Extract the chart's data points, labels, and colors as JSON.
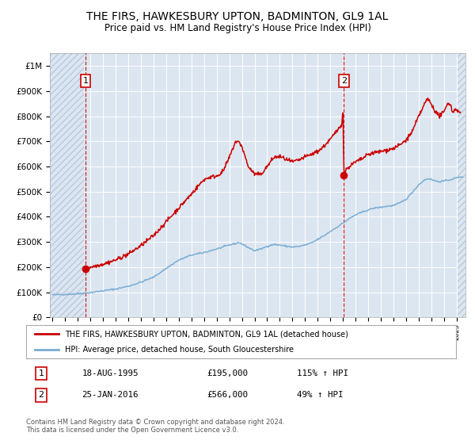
{
  "title": "THE FIRS, HAWKESBURY UPTON, BADMINTON, GL9 1AL",
  "subtitle": "Price paid vs. HM Land Registry's House Price Index (HPI)",
  "title_fontsize": 10.5,
  "subtitle_fontsize": 9,
  "red_line_color": "#cc0000",
  "blue_line_color": "#7aadd4",
  "background_color": "#dce6f1",
  "hatch_color": "#b8c9dc",
  "grid_color": "#ffffff",
  "purchase1_year": 1995.625,
  "purchase1_value": 195000,
  "purchase2_year": 2016.07,
  "purchase2_value": 566000,
  "ylim": [
    0,
    1050000
  ],
  "xlim_start": 1992.8,
  "xlim_end": 2025.7,
  "legend_label_red": "THE FIRS, HAWKESBURY UPTON, BADMINTON, GL9 1AL (detached house)",
  "legend_label_blue": "HPI: Average price, detached house, South Gloucestershire",
  "annotation1_date": "18-AUG-1995",
  "annotation1_price": "£195,000",
  "annotation1_hpi": "115% ↑ HPI",
  "annotation2_date": "25-JAN-2016",
  "annotation2_price": "£566,000",
  "annotation2_hpi": "49% ↑ HPI",
  "footer": "Contains HM Land Registry data © Crown copyright and database right 2024.\nThis data is licensed under the Open Government Licence v3.0.",
  "hpi_anchors": [
    [
      1993.0,
      90000
    ],
    [
      1994.0,
      92000
    ],
    [
      1995.0,
      94000
    ],
    [
      1996.0,
      99000
    ],
    [
      1997.0,
      106000
    ],
    [
      1998.0,
      113000
    ],
    [
      1999.0,
      124000
    ],
    [
      2000.0,
      140000
    ],
    [
      2001.0,
      160000
    ],
    [
      2002.0,
      195000
    ],
    [
      2003.0,
      228000
    ],
    [
      2004.0,
      248000
    ],
    [
      2005.0,
      258000
    ],
    [
      2006.0,
      272000
    ],
    [
      2007.0,
      288000
    ],
    [
      2007.8,
      298000
    ],
    [
      2008.5,
      278000
    ],
    [
      2009.0,
      265000
    ],
    [
      2009.5,
      272000
    ],
    [
      2010.0,
      283000
    ],
    [
      2010.5,
      290000
    ],
    [
      2011.0,
      288000
    ],
    [
      2011.5,
      283000
    ],
    [
      2012.0,
      280000
    ],
    [
      2012.5,
      282000
    ],
    [
      2013.0,
      288000
    ],
    [
      2013.5,
      296000
    ],
    [
      2014.0,
      310000
    ],
    [
      2014.5,
      325000
    ],
    [
      2015.0,
      342000
    ],
    [
      2015.5,
      358000
    ],
    [
      2016.0,
      375000
    ],
    [
      2016.5,
      393000
    ],
    [
      2017.0,
      408000
    ],
    [
      2017.5,
      418000
    ],
    [
      2018.0,
      428000
    ],
    [
      2018.5,
      435000
    ],
    [
      2019.0,
      438000
    ],
    [
      2019.5,
      442000
    ],
    [
      2020.0,
      445000
    ],
    [
      2020.5,
      455000
    ],
    [
      2021.0,
      470000
    ],
    [
      2021.5,
      498000
    ],
    [
      2022.0,
      528000
    ],
    [
      2022.5,
      548000
    ],
    [
      2022.8,
      552000
    ],
    [
      2023.0,
      548000
    ],
    [
      2023.5,
      540000
    ],
    [
      2024.0,
      542000
    ],
    [
      2024.5,
      548000
    ],
    [
      2025.0,
      555000
    ],
    [
      2025.5,
      560000
    ]
  ],
  "red_anchors": [
    [
      1995.625,
      195000
    ],
    [
      1996.0,
      200000
    ],
    [
      1997.0,
      212000
    ],
    [
      1998.0,
      228000
    ],
    [
      1999.0,
      252000
    ],
    [
      2000.0,
      285000
    ],
    [
      2001.0,
      325000
    ],
    [
      2002.0,
      380000
    ],
    [
      2003.0,
      435000
    ],
    [
      2004.0,
      490000
    ],
    [
      2004.5,
      520000
    ],
    [
      2005.0,
      548000
    ],
    [
      2005.5,
      558000
    ],
    [
      2006.0,
      562000
    ],
    [
      2006.5,
      580000
    ],
    [
      2007.0,
      635000
    ],
    [
      2007.5,
      700000
    ],
    [
      2007.8,
      695000
    ],
    [
      2008.0,
      680000
    ],
    [
      2008.5,
      600000
    ],
    [
      2009.0,
      570000
    ],
    [
      2009.5,
      568000
    ],
    [
      2010.0,
      600000
    ],
    [
      2010.5,
      635000
    ],
    [
      2011.0,
      640000
    ],
    [
      2011.5,
      628000
    ],
    [
      2012.0,
      618000
    ],
    [
      2012.5,
      625000
    ],
    [
      2013.0,
      638000
    ],
    [
      2013.5,
      648000
    ],
    [
      2014.0,
      660000
    ],
    [
      2014.5,
      680000
    ],
    [
      2015.0,
      708000
    ],
    [
      2015.5,
      740000
    ],
    [
      2015.9,
      770000
    ],
    [
      2016.0,
      820000
    ],
    [
      2016.07,
      566000
    ],
    [
      2016.2,
      585000
    ],
    [
      2016.5,
      600000
    ],
    [
      2017.0,
      618000
    ],
    [
      2017.5,
      630000
    ],
    [
      2018.0,
      648000
    ],
    [
      2018.5,
      655000
    ],
    [
      2019.0,
      660000
    ],
    [
      2019.5,
      665000
    ],
    [
      2020.0,
      672000
    ],
    [
      2020.5,
      685000
    ],
    [
      2021.0,
      705000
    ],
    [
      2021.5,
      740000
    ],
    [
      2022.0,
      800000
    ],
    [
      2022.5,
      852000
    ],
    [
      2022.7,
      870000
    ],
    [
      2023.0,
      848000
    ],
    [
      2023.3,
      820000
    ],
    [
      2023.6,
      800000
    ],
    [
      2024.0,
      815000
    ],
    [
      2024.3,
      855000
    ],
    [
      2024.5,
      845000
    ],
    [
      2024.7,
      815000
    ],
    [
      2024.9,
      830000
    ],
    [
      2025.1,
      822000
    ],
    [
      2025.3,
      810000
    ]
  ]
}
